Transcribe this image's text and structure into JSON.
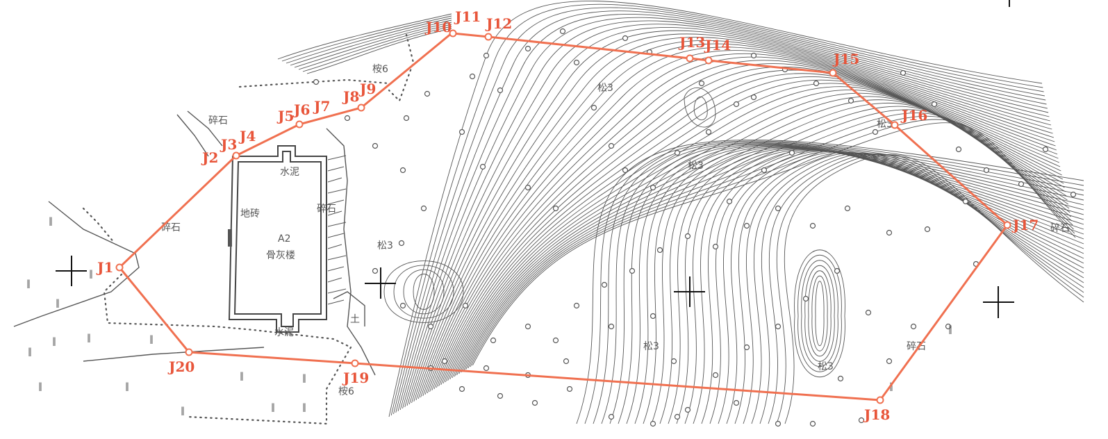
{
  "map": {
    "boundary_points": [
      {
        "id": "J1",
        "label": "J1"
      },
      {
        "id": "J2",
        "label": "J2"
      },
      {
        "id": "J3",
        "label": "J3"
      },
      {
        "id": "J4",
        "label": "J4"
      },
      {
        "id": "J5",
        "label": "J5"
      },
      {
        "id": "J6",
        "label": "J6"
      },
      {
        "id": "J7",
        "label": "J7"
      },
      {
        "id": "J8",
        "label": "J8"
      },
      {
        "id": "J9",
        "label": "J9"
      },
      {
        "id": "J10",
        "label": "J10"
      },
      {
        "id": "J11",
        "label": "J11"
      },
      {
        "id": "J12",
        "label": "J12"
      },
      {
        "id": "J13",
        "label": "J13"
      },
      {
        "id": "J14",
        "label": "J14"
      },
      {
        "id": "J15",
        "label": "J15"
      },
      {
        "id": "J16",
        "label": "J16"
      },
      {
        "id": "J17",
        "label": "J17"
      },
      {
        "id": "J18",
        "label": "J18"
      },
      {
        "id": "J19",
        "label": "J19"
      },
      {
        "id": "J20",
        "label": "J20"
      }
    ],
    "labels": {
      "gravel_1": "碎石",
      "gravel_2": "碎石",
      "gravel_3": "碎石",
      "gravel_4": "碎石",
      "gravel_5": "碎石",
      "floor_tile": "地砖",
      "cement_top": "水泥",
      "cement_bottom": "水泥",
      "building_code": "A2",
      "building_name": "骨灰楼",
      "soil": "土",
      "pine_1": "松3",
      "pine_2": "松3",
      "pine_3": "松3",
      "pine_4": "松3",
      "pine_5": "松3",
      "pine_6": "松3",
      "eucalyptus_1": "桉6",
      "eucalyptus_2": "桉6"
    },
    "colors": {
      "boundary": "#f07050",
      "boundary_label": "#e8553a",
      "linework": "#555555"
    }
  }
}
